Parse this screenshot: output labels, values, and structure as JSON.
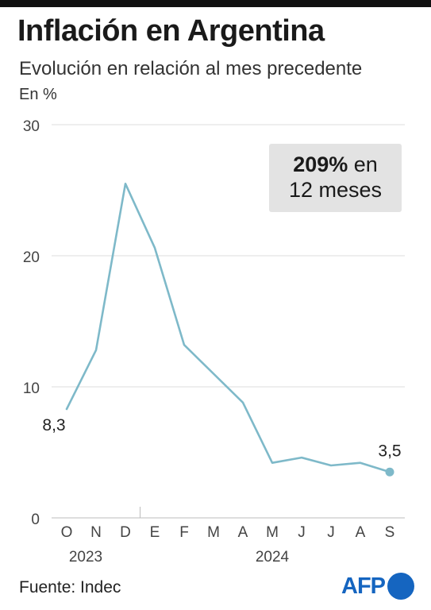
{
  "header": {
    "title": "Inflación en Argentina",
    "subtitle": "Evolución en relación al mes precedente",
    "unit": "En %"
  },
  "callout": {
    "value": "209%",
    "rest": "en",
    "line2": "12 meses"
  },
  "footer": {
    "source": "Fuente: Indec",
    "logo_text": "AFP",
    "logo_color": "#1565c0"
  },
  "chart_data": {
    "type": "line",
    "title": "Inflación en Argentina",
    "subtitle": "Evolución en relación al mes precedente",
    "ylabel": "En %",
    "ylim": [
      0,
      30
    ],
    "yticks": [
      0,
      10,
      20,
      30
    ],
    "grid": true,
    "categories": [
      "O",
      "N",
      "D",
      "E",
      "F",
      "M",
      "A",
      "M",
      "J",
      "J",
      "A",
      "S"
    ],
    "year_labels": [
      {
        "label": "2023",
        "under": 0
      },
      {
        "label": "2024",
        "under": 7
      }
    ],
    "year_divider_after": 2,
    "series": [
      {
        "color": "#7eb9c9",
        "values": [
          8.3,
          12.8,
          25.5,
          20.6,
          13.2,
          11.0,
          8.8,
          4.2,
          4.6,
          4.0,
          4.2,
          3.5
        ]
      }
    ],
    "point_labels": [
      {
        "index": 0,
        "text": "8,3"
      },
      {
        "index": 11,
        "text": "3,5"
      }
    ]
  }
}
